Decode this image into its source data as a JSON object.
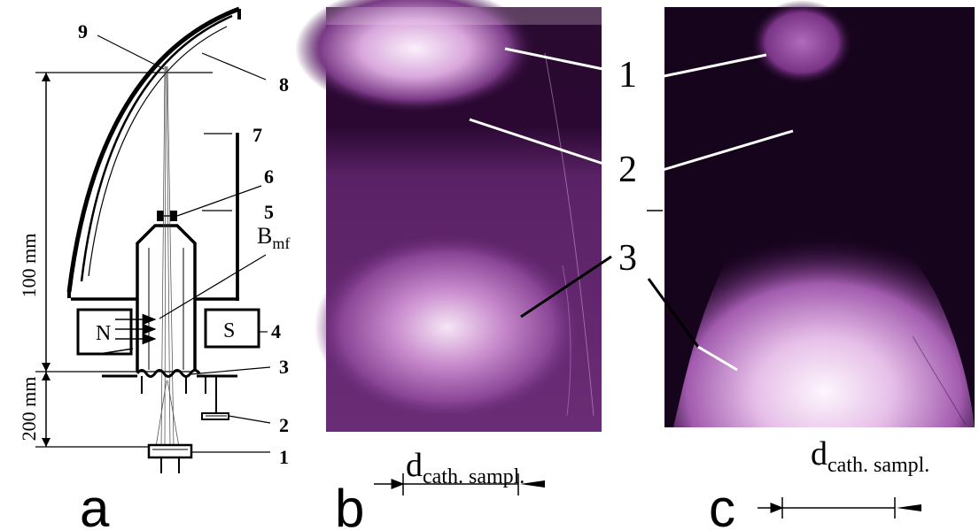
{
  "panel_a": {
    "letter": "a",
    "dim_upper": "100 mm",
    "dim_lower": "200 mm",
    "magnet_north": "N",
    "magnet_south": "S",
    "field_label_main": "B",
    "field_label_sub": "mf",
    "callouts": [
      "1",
      "2",
      "3",
      "4",
      "5",
      "6",
      "7",
      "8",
      "9"
    ]
  },
  "panel_b": {
    "letter": "b",
    "callouts": [
      "1",
      "2",
      "3"
    ],
    "distance_main": "d",
    "distance_sub": "cath. sampl."
  },
  "panel_c": {
    "letter": "c",
    "distance_main": "d",
    "distance_sub": "cath. sampl."
  },
  "colors": {
    "plasma_glow": "#f4e6f4",
    "plasma_mid": "#a060b0",
    "plasma_dark": "#5a1f64",
    "background_dark": "#1a0420"
  }
}
